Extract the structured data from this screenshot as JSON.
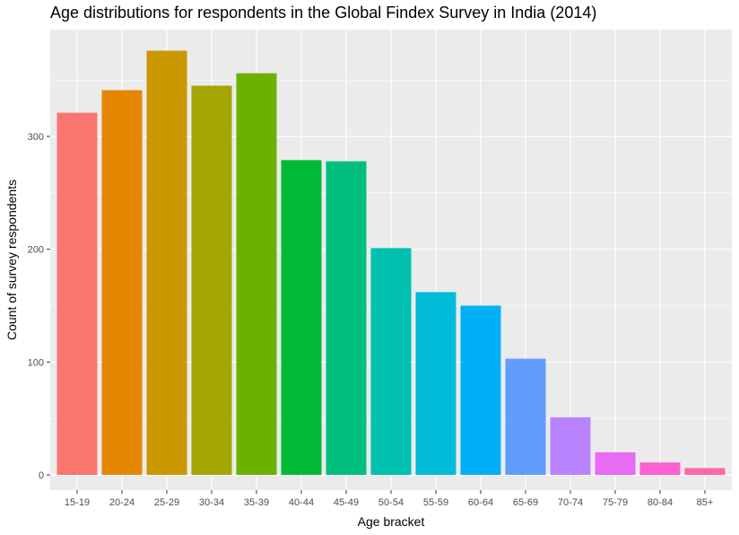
{
  "chart_data": {
    "type": "bar",
    "title": "Age distributions for respondents in the Global Findex Survey in India (2014)",
    "xlabel": "Age bracket",
    "ylabel": "Count of survey respondents",
    "categories": [
      "15-19",
      "20-24",
      "25-29",
      "30-34",
      "35-39",
      "40-44",
      "45-49",
      "50-54",
      "55-59",
      "60-64",
      "65-69",
      "70-74",
      "75-79",
      "80-84",
      "85+"
    ],
    "values": [
      321,
      341,
      376,
      345,
      356,
      279,
      278,
      201,
      162,
      150,
      103,
      51,
      20,
      11,
      6
    ],
    "colors": [
      "#F8766D",
      "#E58700",
      "#C99800",
      "#A3A500",
      "#6BB100",
      "#00BA38",
      "#00BF7D",
      "#00C0AF",
      "#00BCD8",
      "#00B0F6",
      "#619CFF",
      "#B983FF",
      "#E76BF3",
      "#FD61D1",
      "#FF67A4"
    ],
    "yticks": [
      0,
      100,
      200,
      300
    ],
    "ylim": [
      0,
      395
    ],
    "grid": true,
    "legend": "none",
    "panel_background": "#EBEBEB",
    "grid_color": "#FFFFFF"
  }
}
